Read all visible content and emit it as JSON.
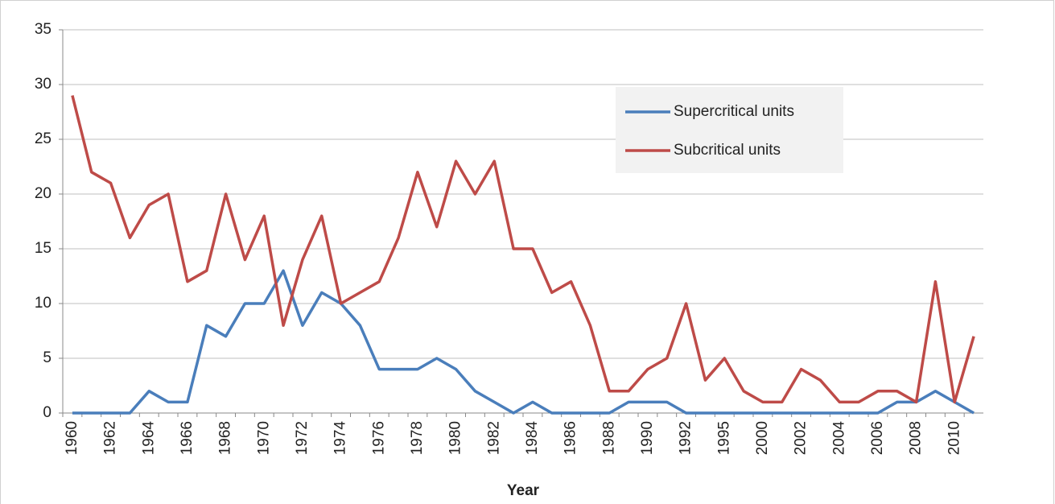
{
  "chart_data": {
    "type": "line",
    "x_label": "Year",
    "categories": [
      "1960",
      null,
      "1962",
      null,
      "1964",
      null,
      "1966",
      null,
      "1968",
      null,
      "1970",
      null,
      "1972",
      null,
      "1974",
      null,
      "1976",
      null,
      "1978",
      null,
      "1980",
      null,
      "1982",
      null,
      "1984",
      null,
      "1986",
      null,
      "1988",
      null,
      "1990",
      null,
      "1992",
      null,
      "1995",
      null,
      "2000",
      null,
      "2002",
      null,
      "2004",
      null,
      "2006",
      null,
      "2008",
      null,
      "2010",
      null
    ],
    "series": [
      {
        "name": "Supercritical units",
        "color": "#4a7ebb",
        "values": [
          0,
          0,
          0,
          0,
          2,
          1,
          1,
          8,
          7,
          10,
          10,
          13,
          8,
          11,
          10,
          8,
          4,
          4,
          4,
          5,
          4,
          2,
          1,
          0,
          1,
          0,
          0,
          0,
          0,
          1,
          1,
          1,
          0,
          0,
          0,
          0,
          0,
          0,
          0,
          0,
          0,
          0,
          0,
          1,
          1,
          2,
          1,
          0
        ]
      },
      {
        "name": "Subcritical units",
        "color": "#be4b48",
        "values": [
          29,
          22,
          21,
          16,
          19,
          20,
          12,
          13,
          20,
          14,
          18,
          8,
          14,
          18,
          10,
          11,
          12,
          16,
          22,
          17,
          23,
          20,
          23,
          15,
          15,
          11,
          12,
          8,
          2,
          2,
          4,
          5,
          10,
          3,
          5,
          2,
          1,
          1,
          4,
          3,
          1,
          1,
          2,
          2,
          1,
          12,
          1,
          7
        ]
      }
    ],
    "ylim": [
      0,
      35
    ],
    "yticks": [
      0,
      5,
      10,
      15,
      20,
      25,
      30,
      35
    ],
    "grid": true,
    "legend": "upper right"
  }
}
